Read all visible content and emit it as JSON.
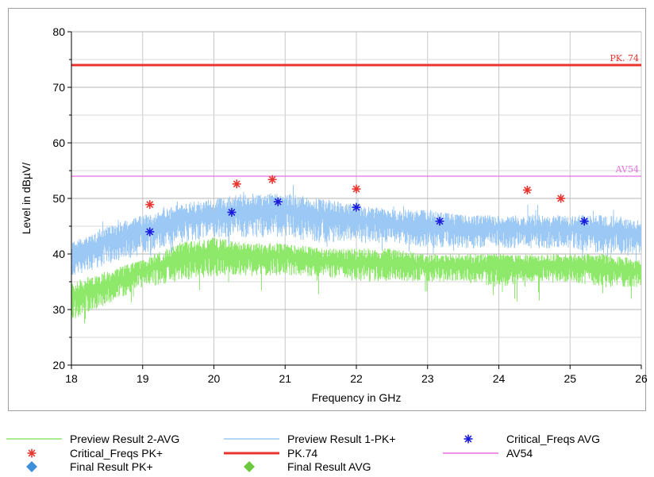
{
  "chart_data": {
    "type": "line",
    "xlabel": "Frequency in GHz",
    "ylabel": "Level in dBµV/",
    "xlim": [
      18,
      26
    ],
    "ylim": [
      20,
      80
    ],
    "x_ticks": [
      "18",
      "19",
      "20",
      "21",
      "22",
      "23",
      "24",
      "25",
      "26"
    ],
    "y_ticks": [
      "20",
      "30",
      "40",
      "50",
      "60",
      "70",
      "80"
    ],
    "grid": true,
    "limit_lines": [
      {
        "name": "PK.74",
        "label": "PK. 74",
        "value": 74,
        "color": "#e8352f"
      },
      {
        "name": "AV54",
        "label": "AV54",
        "value": 54,
        "color": "#e66fe0"
      }
    ],
    "series": [
      {
        "name": "Preview Result 2-AVG",
        "color": "#8ee86a",
        "envelope": {
          "x": [
            18,
            18.5,
            19,
            19.5,
            20,
            20.5,
            21,
            21.5,
            22,
            22.5,
            23,
            23.5,
            24,
            24.5,
            25,
            25.5,
            26
          ],
          "low": [
            28,
            31,
            34,
            35,
            36,
            36,
            36,
            36,
            35,
            35,
            35,
            35,
            34,
            35,
            35,
            34,
            34
          ],
          "high": [
            35,
            37,
            39,
            42,
            43,
            42,
            42,
            41,
            41,
            41,
            40,
            40,
            40,
            40,
            40,
            40,
            39
          ]
        }
      },
      {
        "name": "Preview Result 1-PK+",
        "color": "#9cc8f5",
        "envelope": {
          "x": [
            18,
            18.5,
            19,
            19.5,
            20,
            20.5,
            21,
            21.5,
            22,
            22.5,
            23,
            23.5,
            24,
            24.5,
            25,
            25.5,
            26
          ],
          "low": [
            36,
            38,
            40,
            42,
            43,
            43,
            43,
            42,
            42,
            42,
            41,
            41,
            41,
            41,
            41,
            40,
            40
          ],
          "high": [
            42,
            45,
            47,
            49,
            50,
            51,
            51,
            50,
            49,
            48,
            48,
            47,
            47,
            47,
            47,
            47,
            46
          ]
        }
      },
      {
        "name": "Critical_Freqs PK+",
        "color": "#e8352f",
        "marker": "asterisk",
        "x": [
          19.1,
          20.32,
          20.82,
          22.0,
          24.4,
          24.87
        ],
        "y": [
          48.9,
          52.6,
          53.4,
          51.7,
          51.5,
          50.0
        ]
      },
      {
        "name": "Critical_Freqs AVG",
        "color": "#1a1adb",
        "marker": "asterisk",
        "x": [
          19.1,
          20.25,
          20.9,
          22.0,
          23.17,
          25.2
        ],
        "y": [
          44.0,
          47.5,
          49.4,
          48.4,
          45.9,
          45.9
        ]
      },
      {
        "name": "Final  Result PK+",
        "color": "#3d8fd9",
        "marker": "diamond",
        "x": [],
        "y": []
      },
      {
        "name": "Final  Result AVG",
        "color": "#6cc93f",
        "marker": "diamond",
        "x": [],
        "y": []
      }
    ]
  },
  "legend": [
    {
      "label": "Preview Result 2-AVG",
      "kind": "line",
      "color": "#8ee86a"
    },
    {
      "label": "Preview Result 1-PK+",
      "kind": "line",
      "color": "#9cc8f5"
    },
    {
      "label": "Critical_Freqs AVG",
      "kind": "asterisk",
      "color": "#1a1adb"
    },
    {
      "label": "Critical_Freqs PK+",
      "kind": "asterisk",
      "color": "#e8352f"
    },
    {
      "label": "PK.74",
      "kind": "thickline",
      "color": "#e8352f"
    },
    {
      "label": "AV54",
      "kind": "line",
      "color": "#e66fe0"
    },
    {
      "label": "Final  Result PK+",
      "kind": "diamond",
      "color": "#3d8fd9"
    },
    {
      "label": "Final  Result AVG",
      "kind": "diamond",
      "color": "#6cc93f"
    }
  ]
}
